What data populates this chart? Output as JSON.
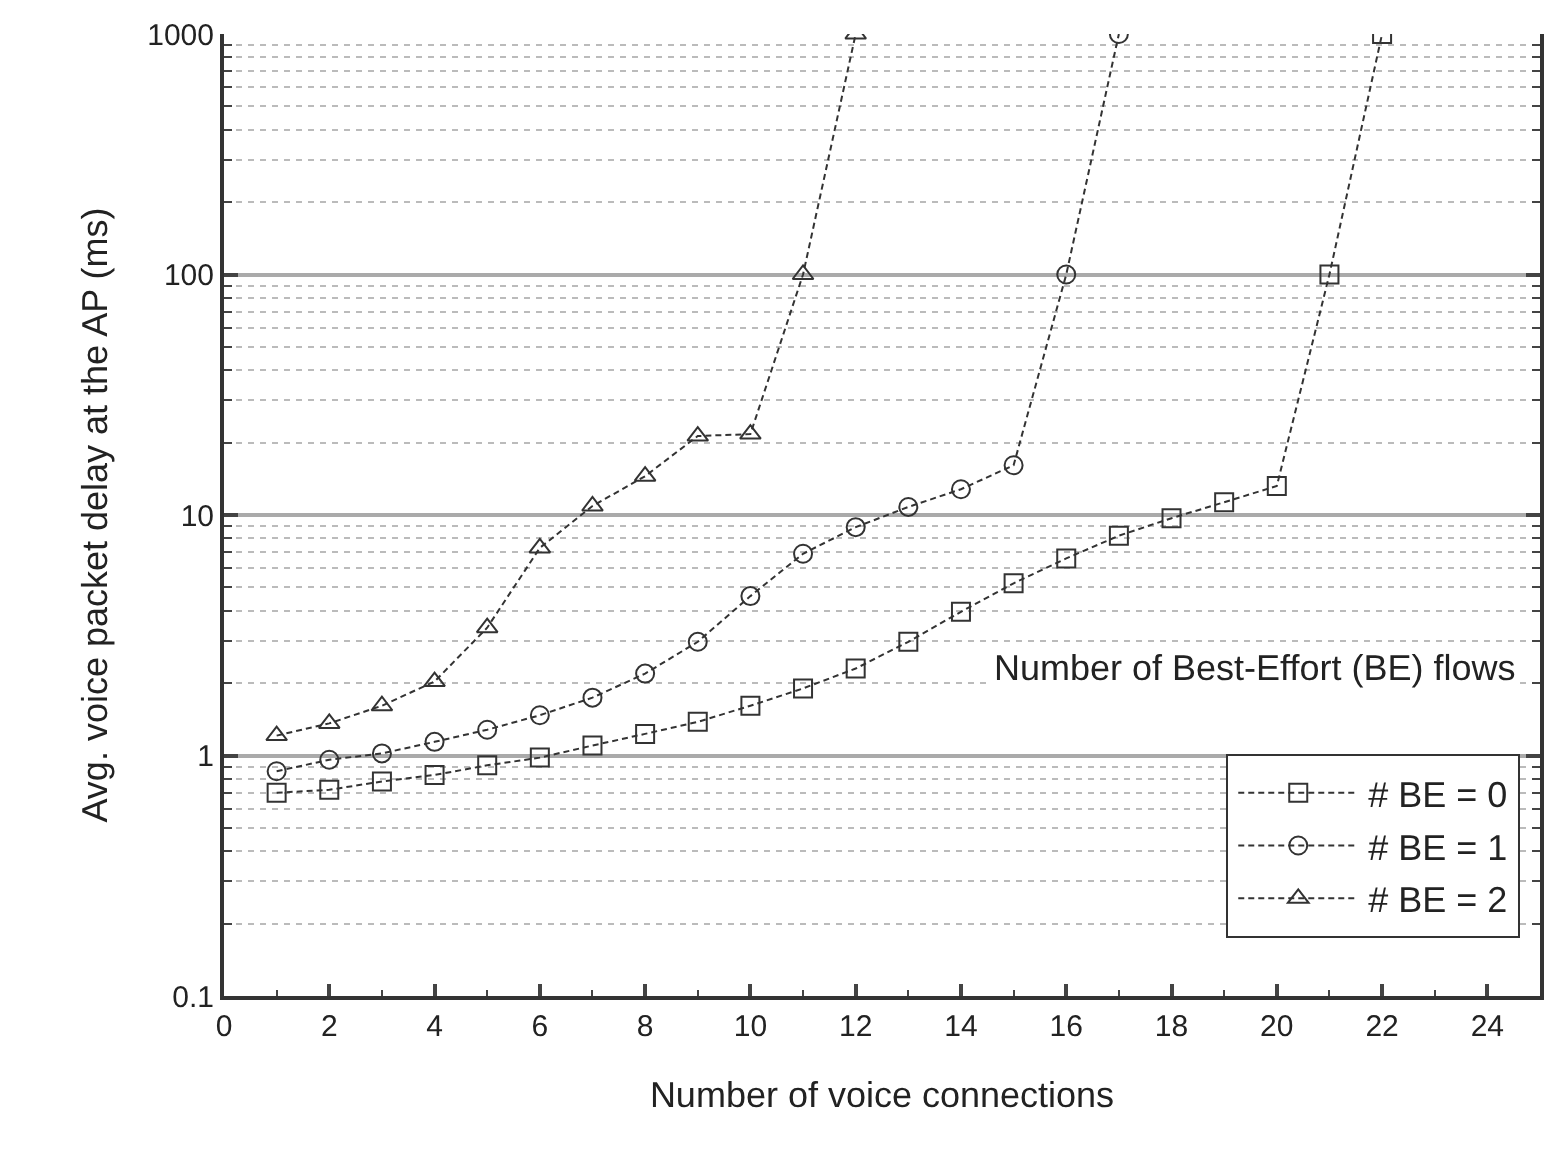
{
  "chart_data": {
    "type": "line",
    "xlabel": "Number of voice connections",
    "ylabel": "Avg. voice packet delay at the AP (ms)",
    "log": "y",
    "grid": "y",
    "legend": "bottom right",
    "line_style": "dashed",
    "xlim": [
      0,
      25
    ],
    "xticks": [
      0,
      2,
      4,
      6,
      8,
      10,
      12,
      14,
      16,
      18,
      20,
      22,
      24
    ],
    "ylim": [
      0.1,
      1000
    ],
    "yticks": [
      0.1,
      1,
      10,
      100,
      1000
    ],
    "annotations": [
      "Number of Best-Effort (BE) flows"
    ],
    "series": [
      {
        "name": "# BE = 0",
        "color": "#333333",
        "marker": "square",
        "x": [
          1,
          2,
          3,
          4,
          5,
          6,
          7,
          8,
          9,
          10,
          11,
          12,
          13,
          14,
          15,
          16,
          17,
          18,
          19,
          20,
          21,
          22
        ],
        "values": [
          0.7,
          0.72,
          0.78,
          0.83,
          0.91,
          0.98,
          1.1,
          1.23,
          1.38,
          1.61,
          1.9,
          2.3,
          2.97,
          3.96,
          5.2,
          6.6,
          8.2,
          9.7,
          11.3,
          13.2,
          100,
          1000
        ]
      },
      {
        "name": "# BE = 1",
        "color": "#333333",
        "marker": "circle",
        "x": [
          1,
          2,
          3,
          4,
          5,
          6,
          7,
          8,
          9,
          10,
          11,
          12,
          13,
          14,
          15,
          16,
          17
        ],
        "values": [
          0.86,
          0.96,
          1.02,
          1.14,
          1.28,
          1.47,
          1.74,
          2.19,
          2.97,
          4.6,
          6.9,
          8.9,
          10.8,
          12.8,
          16.1,
          100,
          1000
        ]
      },
      {
        "name": "# BE = 2",
        "color": "#333333",
        "marker": "triangle",
        "x": [
          1,
          2,
          3,
          4,
          5,
          6,
          7,
          8,
          9,
          10,
          11,
          12
        ],
        "values": [
          1.21,
          1.36,
          1.61,
          2.03,
          3.4,
          7.3,
          10.9,
          14.5,
          21.3,
          21.7,
          100,
          1000
        ]
      }
    ]
  }
}
